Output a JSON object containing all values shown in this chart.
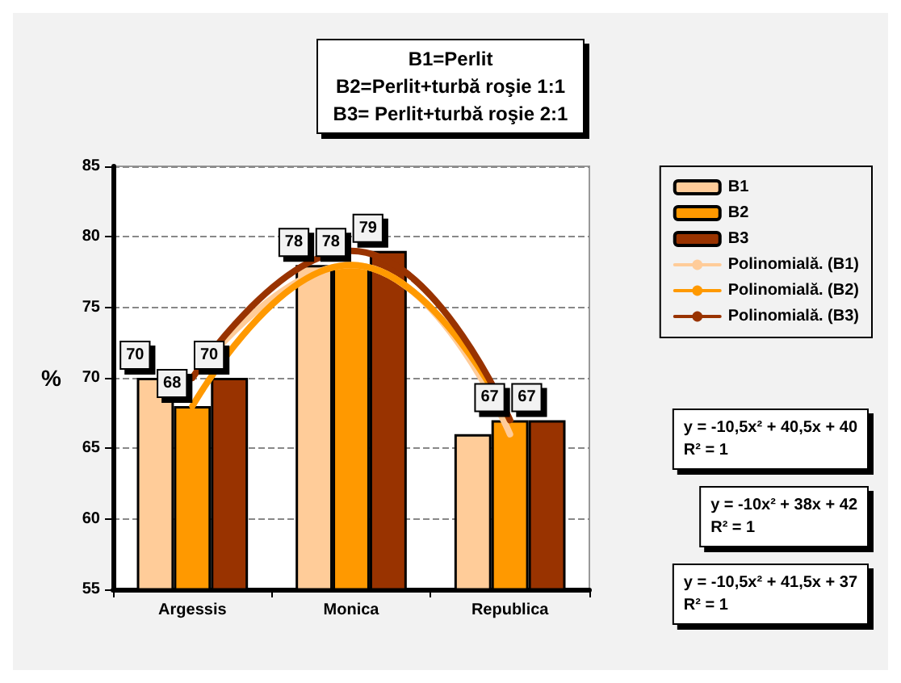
{
  "chart_data": {
    "type": "bar",
    "title": "B1=Perlit\nB2=Perlit+turbă roşie 1:1\nB3= Perlit+turbă roşie 2:1",
    "ylabel": "%",
    "categories": [
      "Argessis",
      "Monica",
      "Republica"
    ],
    "series": [
      {
        "name": "B1",
        "color": "#ffcc99",
        "values": [
          70,
          78,
          66
        ],
        "value_labels": [
          "70",
          "78",
          null
        ]
      },
      {
        "name": "B2",
        "color": "#ff9900",
        "values": [
          68,
          78,
          67
        ],
        "value_labels": [
          "68",
          "78",
          "67"
        ]
      },
      {
        "name": "B3",
        "color": "#993300",
        "values": [
          70,
          79,
          67
        ],
        "value_labels": [
          "70",
          "79",
          "67"
        ]
      },
      {
        "name": "Polinomială. (B1)",
        "type": "line",
        "color": "#ffcc99",
        "x": [
          "Argessis",
          "Monica",
          "Republica"
        ],
        "values": [
          70,
          78,
          66
        ]
      },
      {
        "name": "Polinomială. (B2)",
        "type": "line",
        "color": "#ff9900",
        "x": [
          "Argessis",
          "Monica",
          "Republica"
        ],
        "values": [
          68,
          78,
          67
        ]
      },
      {
        "name": "Polinomială. (B3)",
        "type": "line",
        "color": "#993300",
        "x": [
          "Argessis",
          "Monica",
          "Republica"
        ],
        "values": [
          70,
          79,
          67
        ]
      }
    ],
    "ylim": [
      55,
      85
    ],
    "yticks": [
      55,
      60,
      65,
      70,
      75,
      80,
      85
    ],
    "grid": "y",
    "legend": "right",
    "marker": "none",
    "annotations": [
      "y = -10,5x² + 40,5x + 40\nR² = 1",
      "y = -10x² + 38x + 42\nR² = 1",
      "y = -10,5x² + 41,5x + 37\nR² = 1"
    ]
  }
}
